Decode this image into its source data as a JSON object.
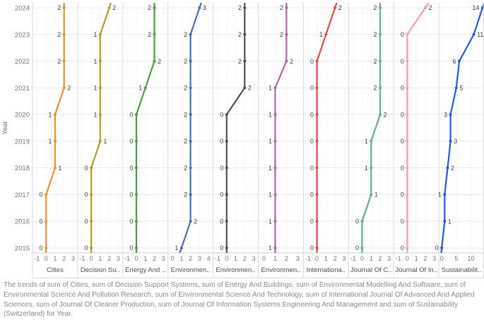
{
  "caption": "The trends of sum of Cities, sum of Decision Support Systems, sum of Energy And Buildings, sum of Environmental Modelling And Software, sum of Environmental Science And Pollution Research, sum of Environmental Science And Technology, sum of International Journal Of Advanced And Applied Sciences, sum of Journal Of Cleaner Production, sum of Journal Of Information Systems Engineering And Management and sum of Sustainability (Switzerland) for Year.",
  "chart_data": {
    "type": "line",
    "layout": "small-multiples-horizontal",
    "ylabel": "Year",
    "grid": true,
    "years": [
      2015,
      2016,
      2017,
      2018,
      2019,
      2020,
      2021,
      2022,
      2023,
      2024
    ],
    "year_ticks_displayed": [
      "2024",
      "2023",
      "2022",
      "2021",
      "2020",
      "2019",
      "2018",
      "2017",
      "2016",
      "2015"
    ],
    "series": [
      {
        "name": "Cities",
        "title": "Cities",
        "color": "#f28e2b",
        "values": [
          0,
          0,
          0,
          1,
          1,
          1,
          2,
          2,
          2,
          2
        ],
        "ticks": [
          -1,
          0,
          1,
          2,
          3
        ],
        "domain": [
          -1.5,
          3.5
        ],
        "label_sides": [
          "L",
          "L",
          "L",
          "R",
          "L",
          "L",
          "R",
          "L",
          "L",
          "L"
        ]
      },
      {
        "name": "Decision Support Systems",
        "title": "Decision Su..",
        "color": "#b29d28",
        "values": [
          0,
          0,
          0,
          0,
          1,
          1,
          1,
          1,
          1,
          2
        ],
        "ticks": [
          -1,
          0,
          1,
          2,
          3
        ],
        "domain": [
          -1.5,
          3.5
        ],
        "label_sides": [
          "L",
          "L",
          "L",
          "L",
          "R",
          "L",
          "L",
          "L",
          "L",
          "R"
        ]
      },
      {
        "name": "Energy And Buildings",
        "title": "Energy And ..",
        "color": "#46a039",
        "values": [
          0,
          0,
          0,
          0,
          0,
          0,
          1,
          2,
          2,
          2
        ],
        "ticks": [
          -1,
          0,
          1,
          2,
          3
        ],
        "domain": [
          -1.5,
          3.5
        ],
        "label_sides": [
          "L",
          "L",
          "L",
          "L",
          "L",
          "L",
          "L",
          "R",
          "L",
          "L"
        ]
      },
      {
        "name": "Environmental Modelling And Software",
        "title": "Environmen..",
        "color": "#4272b2",
        "values": [
          1,
          2,
          2,
          2,
          2,
          2,
          2,
          2,
          2,
          3
        ],
        "ticks": [
          0,
          1,
          2,
          3,
          4
        ],
        "domain": [
          -0.5,
          4.5
        ],
        "label_sides": [
          "L",
          "R",
          "L",
          "L",
          "L",
          "L",
          "L",
          "L",
          "L",
          "R"
        ]
      },
      {
        "name": "Environmental Science And Pollution Research",
        "title": "Environmen..",
        "color": "#4a5263",
        "values": [
          0,
          0,
          0,
          0,
          0,
          0,
          2,
          2,
          2,
          2
        ],
        "ticks": [
          -1,
          0,
          1,
          2,
          3
        ],
        "domain": [
          -1.5,
          3.5
        ],
        "label_sides": [
          "L",
          "L",
          "L",
          "L",
          "L",
          "L",
          "R",
          "L",
          "L",
          "L"
        ]
      },
      {
        "name": "Environmental Science And Technology",
        "title": "Environmen..",
        "color": "#b263a0",
        "values": [
          1,
          1,
          1,
          1,
          1,
          1,
          1,
          2,
          2,
          2
        ],
        "ticks": [
          0,
          1,
          2,
          3
        ],
        "domain": [
          -0.5,
          3.5
        ],
        "label_sides": [
          "L",
          "L",
          "L",
          "L",
          "L",
          "L",
          "L",
          "R",
          "L",
          "L"
        ]
      },
      {
        "name": "International Journal Of Advanced And Applied Sciences",
        "title": "Internationa..",
        "color": "#e04843",
        "values": [
          0,
          0,
          0,
          0,
          0,
          0,
          0,
          0,
          1,
          2
        ],
        "ticks": [
          -1,
          0,
          1,
          2,
          3
        ],
        "domain": [
          -1.5,
          3.5
        ],
        "label_sides": [
          "L",
          "L",
          "L",
          "L",
          "L",
          "L",
          "L",
          "L",
          "L",
          "R"
        ]
      },
      {
        "name": "Journal Of Cleaner Production",
        "title": "Journal Of C..",
        "color": "#64aba1",
        "values": [
          0,
          0,
          1,
          1,
          1,
          2,
          2,
          2,
          2,
          2
        ],
        "ticks": [
          -1,
          0,
          1,
          2,
          3
        ],
        "domain": [
          -1.5,
          3.5
        ],
        "label_sides": [
          "L",
          "L",
          "R",
          "L",
          "L",
          "R",
          "L",
          "L",
          "L",
          "L"
        ]
      },
      {
        "name": "Journal Of Information Systems Engineering And Management",
        "title": "Journal Of In..",
        "color": "#f89ca7",
        "values": [
          0,
          0,
          0,
          0,
          0,
          0,
          0,
          0,
          0,
          2
        ],
        "ticks": [
          -1,
          0,
          1,
          2,
          3
        ],
        "domain": [
          -1.5,
          3.5
        ],
        "label_sides": [
          "L",
          "L",
          "L",
          "L",
          "L",
          "L",
          "L",
          "L",
          "L",
          "R"
        ]
      },
      {
        "name": "Sustainability (Switzerland)",
        "title": "Sustainabilit..",
        "color": "#2458e0",
        "values": [
          0,
          1,
          1,
          2,
          3,
          3,
          5,
          6,
          11,
          14
        ],
        "ticks": [
          0,
          5,
          10
        ],
        "domain": [
          -1,
          14.5
        ],
        "label_sides": [
          "L",
          "R",
          "L",
          "R",
          "R",
          "L",
          "R",
          "L",
          "R",
          "L"
        ]
      }
    ],
    "style_colors": {
      "year_gridline": "#e9e9e9",
      "tick_gridline": "#e3e3e3",
      "panel_border": "#d9d9d9",
      "axis_line": "#d0d0d0",
      "tick_text": "#767676",
      "data_label_text": "#3f3f3f",
      "panel_title_text": "#4e4e4e",
      "caption_text": "#8b8b8b"
    }
  }
}
